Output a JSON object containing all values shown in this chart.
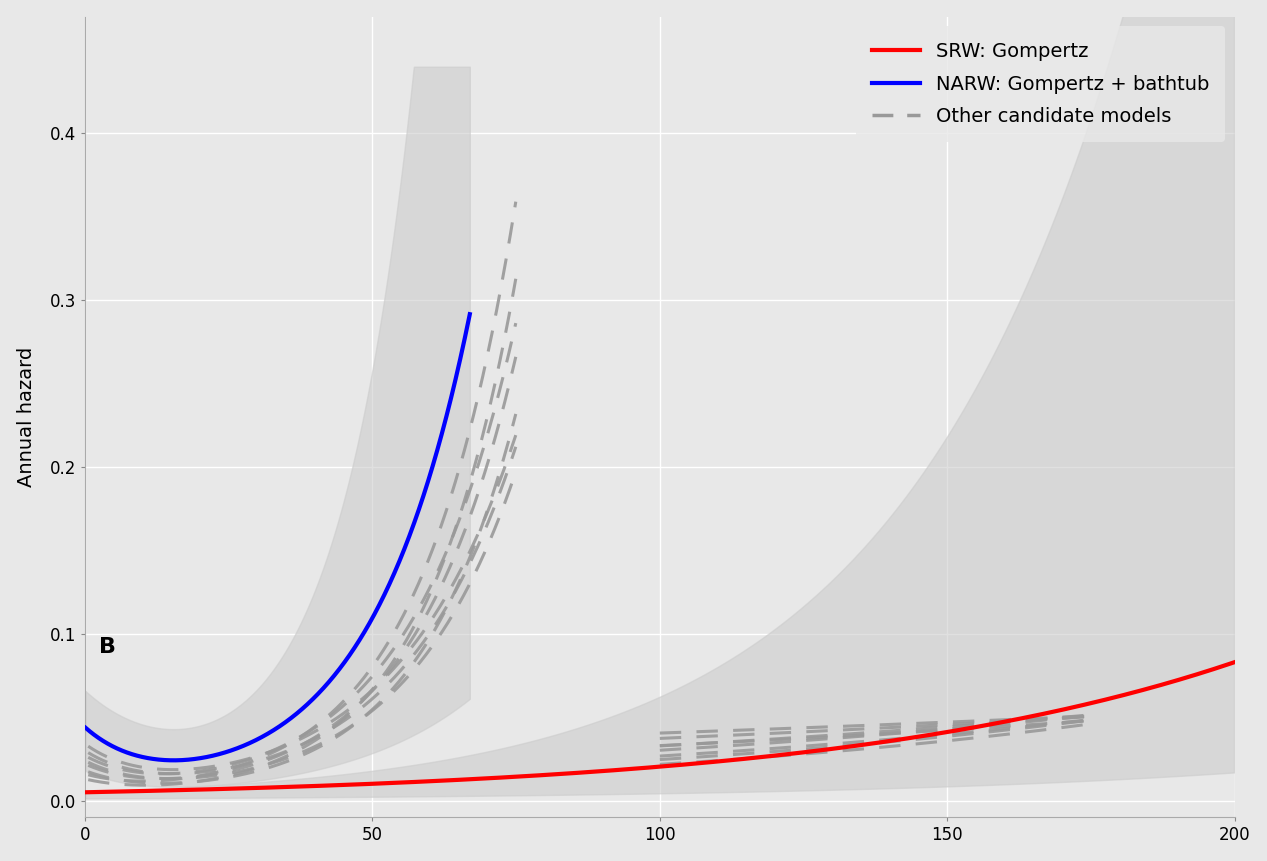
{
  "background_color": "#e8e8e8",
  "panel_color": "#e8e8e8",
  "ylabel": "Annual hazard",
  "xlim": [
    0,
    200
  ],
  "ylim": [
    -0.01,
    0.47
  ],
  "yticks": [
    0.0,
    0.1,
    0.2,
    0.3,
    0.4
  ],
  "xticks": [
    0,
    50,
    100,
    150,
    200
  ],
  "label_B": "B",
  "srw_color": "#ff0000",
  "narw_color": "#0000ff",
  "other_color": "#999999",
  "ci_color": "#cccccc",
  "legend_labels": [
    "SRW: Gompertz",
    "NARW: Gompertz + bathtub",
    "Other candidate models"
  ],
  "axis_fontsize": 14,
  "legend_fontsize": 14
}
